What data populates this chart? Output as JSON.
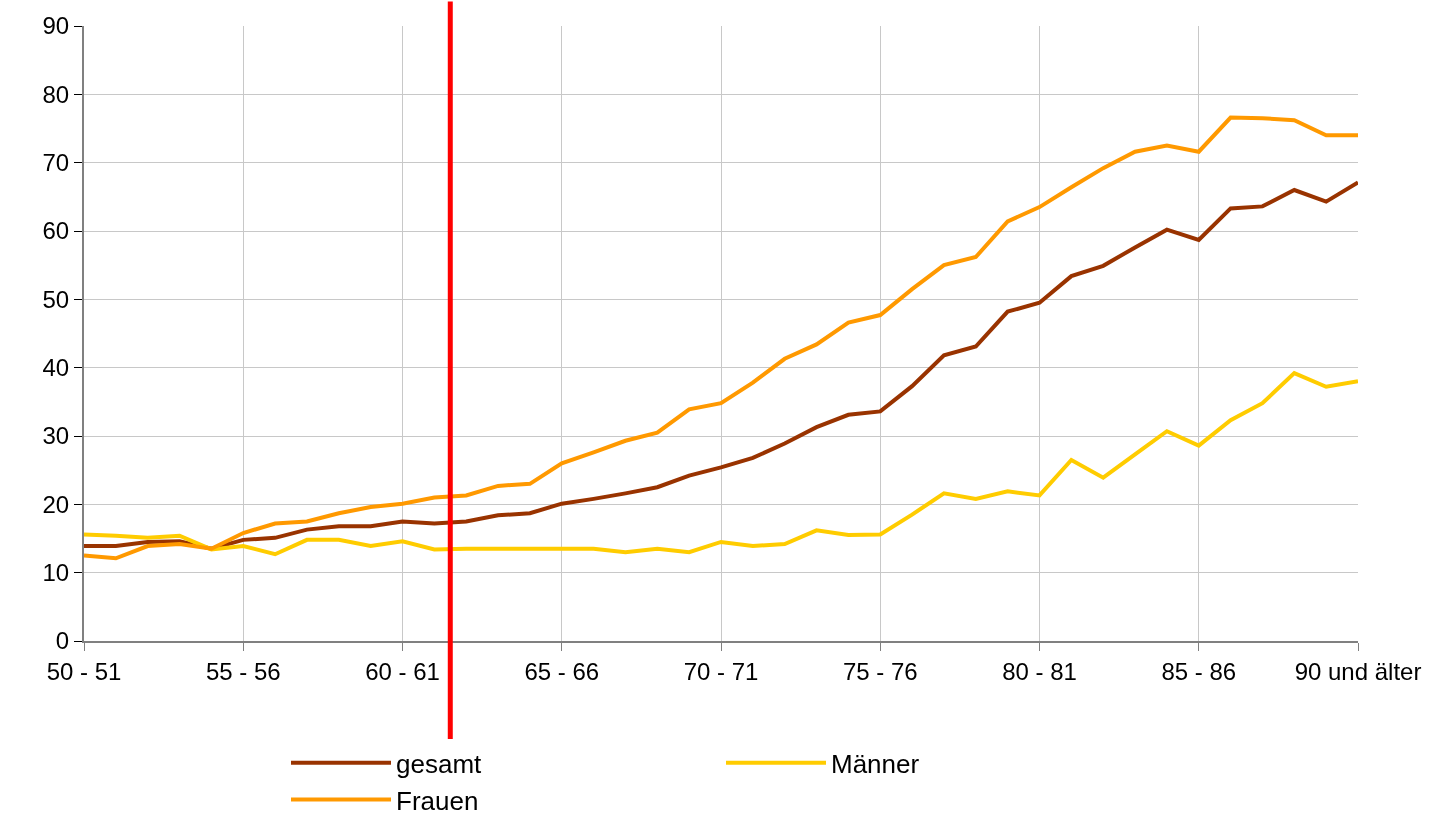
{
  "chart_data": {
    "type": "line",
    "categories": [
      "50 - 51",
      null,
      null,
      null,
      null,
      "55 - 56",
      null,
      null,
      null,
      null,
      "60 - 61",
      null,
      null,
      null,
      null,
      "65 - 66",
      null,
      null,
      null,
      null,
      "70 - 71",
      null,
      null,
      null,
      null,
      "75 - 76",
      null,
      null,
      null,
      null,
      "80 - 81",
      null,
      null,
      null,
      null,
      "85 - 86",
      null,
      null,
      null,
      null,
      "90 und älter"
    ],
    "series": [
      {
        "name": "gesamt",
        "color": "#993300",
        "values": [
          13.9,
          13.9,
          14.5,
          14.6,
          13.5,
          14.8,
          15.1,
          16.3,
          16.8,
          16.8,
          17.5,
          17.2,
          17.5,
          18.4,
          18.7,
          20.1,
          20.8,
          21.6,
          22.5,
          24.2,
          25.4,
          26.8,
          28.9,
          31.3,
          33.1,
          33.6,
          37.3,
          41.8,
          43.1,
          48.2,
          49.5,
          53.4,
          54.9,
          57.6,
          60.2,
          58.7,
          63.3,
          63.6,
          66.0,
          64.3,
          67.1
        ]
      },
      {
        "name": "Männer",
        "color": "#ffcc00",
        "values": [
          15.6,
          15.4,
          15.1,
          15.4,
          13.4,
          13.9,
          12.7,
          14.8,
          14.8,
          13.9,
          14.6,
          13.4,
          13.5,
          13.5,
          13.5,
          13.5,
          13.5,
          13.0,
          13.5,
          13.0,
          14.5,
          13.9,
          14.2,
          16.2,
          15.5,
          15.6,
          18.5,
          21.6,
          20.8,
          21.9,
          21.3,
          26.5,
          23.9,
          27.3,
          30.7,
          28.6,
          32.3,
          34.8,
          39.2,
          37.2,
          38.0
        ]
      },
      {
        "name": "Frauen",
        "color": "#ff9900",
        "values": [
          12.5,
          12.1,
          13.9,
          14.2,
          13.5,
          15.8,
          17.2,
          17.5,
          18.7,
          19.6,
          20.1,
          21.0,
          21.3,
          22.7,
          23.0,
          26.0,
          27.6,
          29.3,
          30.5,
          33.9,
          34.8,
          37.8,
          41.3,
          43.4,
          46.6,
          47.7,
          51.5,
          55.0,
          56.2,
          61.4,
          63.5,
          66.4,
          69.2,
          71.6,
          72.5,
          71.6,
          76.6,
          76.5,
          76.2,
          74.0,
          74.0
        ]
      }
    ],
    "ylim": [
      0,
      90
    ],
    "yticks": [
      0,
      10,
      20,
      30,
      40,
      50,
      60,
      70,
      80,
      90
    ],
    "grid": true,
    "legend": "bottom",
    "marker": "none",
    "line_style": "solid"
  }
}
